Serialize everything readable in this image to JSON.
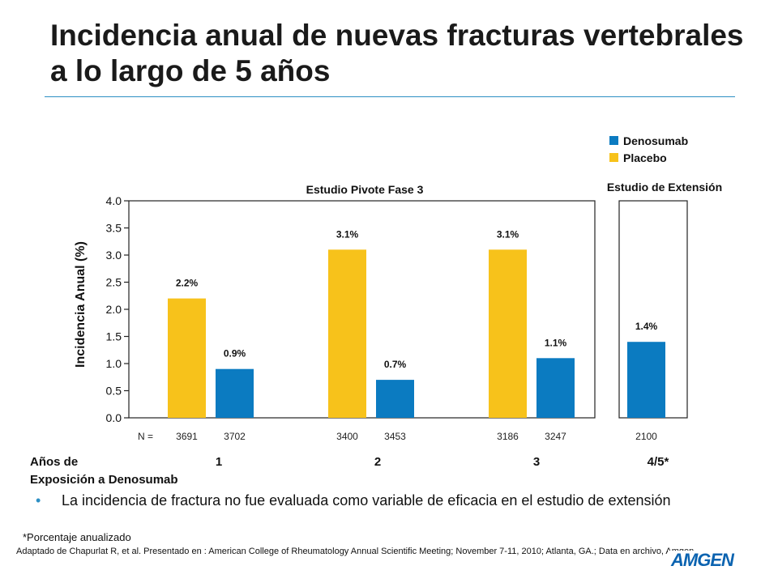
{
  "title": "Incidencia anual de nuevas fracturas vertebrales a lo largo de 5 años",
  "chart_data": {
    "type": "bar",
    "ylabel": "Incidencia Anual (%)",
    "ylim": [
      0,
      4.0
    ],
    "yticks": [
      "0.0",
      "0.5",
      "1.0",
      "1.5",
      "2.0",
      "2.5",
      "3.0",
      "3.5",
      "4.0"
    ],
    "panel_titles": [
      "Estudio Pivote Fase 3",
      "Estudio de Extensión"
    ],
    "legend": [
      {
        "name": "Denosumab",
        "color": "#0b7bc1"
      },
      {
        "name": "Placebo",
        "color": "#f7c21b"
      }
    ],
    "n_label": "N =",
    "xlabel": "Años de Exposición a Denosumab",
    "xlabel_line1": "Años de",
    "xlabel_line2": "Exposición a Denosumab",
    "groups": [
      {
        "category": "1",
        "bars": [
          {
            "series": "Placebo",
            "value": 2.2,
            "label": "2.2%",
            "n": "3691"
          },
          {
            "series": "Denosumab",
            "value": 0.9,
            "label": "0.9%",
            "n": "3702"
          }
        ]
      },
      {
        "category": "2",
        "bars": [
          {
            "series": "Placebo",
            "value": 3.1,
            "label": "3.1%",
            "n": "3400"
          },
          {
            "series": "Denosumab",
            "value": 0.7,
            "label": "0.7%",
            "n": "3453"
          }
        ]
      },
      {
        "category": "3",
        "bars": [
          {
            "series": "Placebo",
            "value": 3.1,
            "label": "3.1%",
            "n": "3186"
          },
          {
            "series": "Denosumab",
            "value": 1.1,
            "label": "1.1%",
            "n": "3247"
          }
        ]
      },
      {
        "category": "4/5*",
        "bars": [
          {
            "series": "Denosumab",
            "value": 1.4,
            "label": "1.4%",
            "n": "2100"
          }
        ]
      }
    ]
  },
  "bullet": "La incidencia de fractura no fue evaluada como variable de eficacia en el estudio de extensión",
  "footnote": "*Porcentaje anualizado",
  "source": "Adaptado de Chapurlat R, et al. Presentado en : American College of Rheumatology Annual Scientific Meeting; November 7-11, 2010; Atlanta, GA.; Data en archivo, Amgen.",
  "logo": "AMGEN"
}
